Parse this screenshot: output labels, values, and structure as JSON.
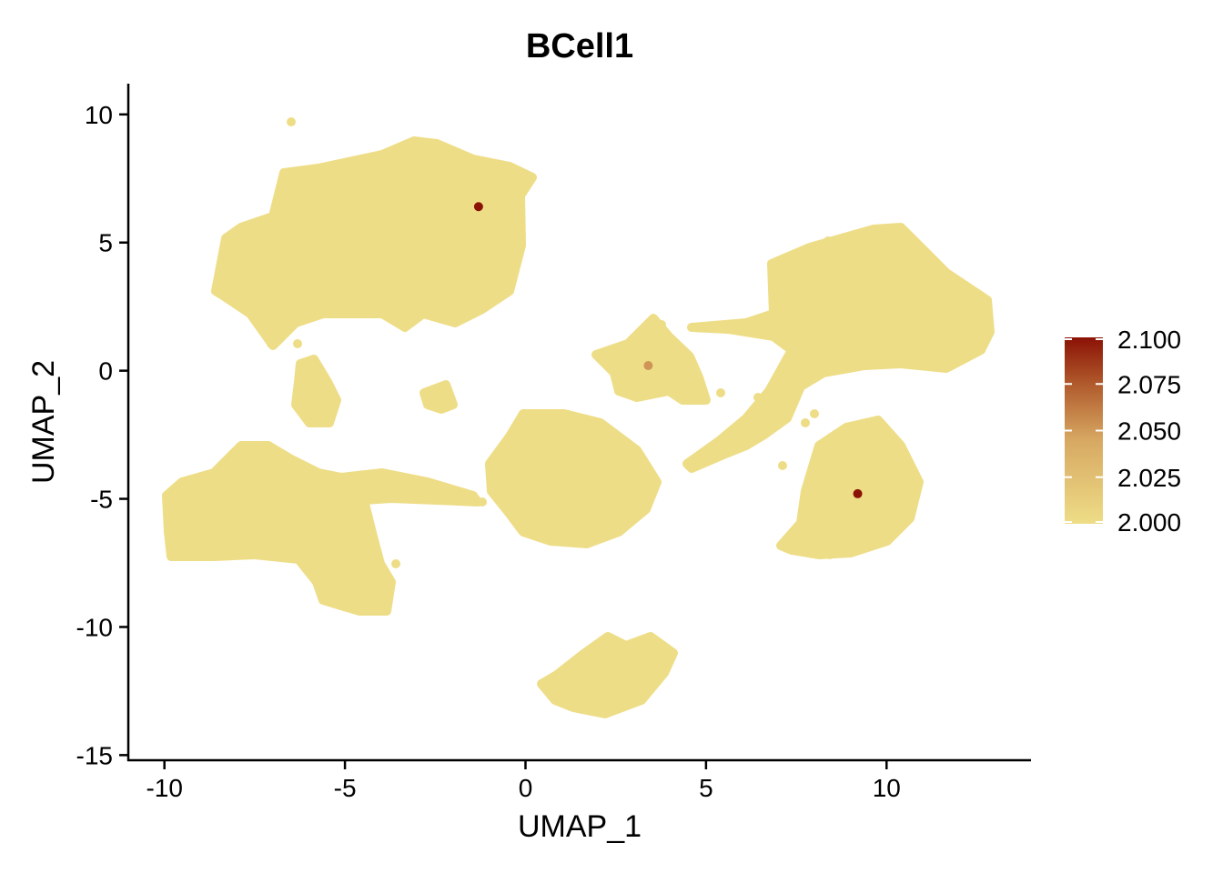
{
  "chart_data": {
    "type": "scatter",
    "title": "BCell1",
    "xlabel": "UMAP_1",
    "ylabel": "UMAP_2",
    "xlim": [
      -11,
      14
    ],
    "ylim": [
      -15.2,
      11.2
    ],
    "x_ticks": [
      -10,
      -5,
      0,
      5,
      10
    ],
    "x_tick_labels": [
      "-10",
      "-5",
      "0",
      "5",
      "10"
    ],
    "y_ticks": [
      -15,
      -10,
      -5,
      0,
      5,
      10
    ],
    "y_tick_labels": [
      "-15",
      "-10",
      "-5",
      "0",
      "5",
      "10"
    ],
    "grid": false,
    "base_color": "#EEDD87",
    "base_value": 2.0,
    "highlight_points": [
      {
        "x": -1.3,
        "y": 6.4,
        "value": 2.1
      },
      {
        "x": 3.4,
        "y": 0.2,
        "value": 2.04
      },
      {
        "x": 9.2,
        "y": -4.8,
        "value": 2.1
      }
    ],
    "colorbar": {
      "min": 2.0,
      "max": 2.1,
      "low_color": "#EEDD87",
      "mid_color": "#C8834A",
      "high_color": "#8B1206",
      "ticks": [
        2.0,
        2.025,
        2.05,
        2.075,
        2.1
      ],
      "tick_labels": [
        "2.000",
        "2.025",
        "2.050",
        "2.075",
        "2.100"
      ],
      "placement": "right"
    }
  }
}
